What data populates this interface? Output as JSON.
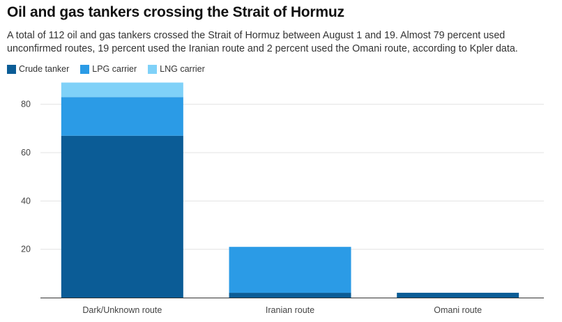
{
  "title": "Oil and gas tankers crossing the Strait of Hormuz",
  "subtitle": "A total of 112 oil and gas tankers crossed the Strait of Hormuz between August 1 and 19. Almost 79 percent used unconfirmed routes, 19 percent used the Iranian route and 2 percent used the Omani route, according to Kpler data.",
  "chart_data": {
    "type": "bar",
    "stacked": true,
    "title": "Oil and gas tankers crossing the Strait of Hormuz",
    "xlabel": "",
    "ylabel": "",
    "categories": [
      "Dark/Unknown route",
      "Iranian route",
      "Omani route"
    ],
    "series": [
      {
        "name": "Crude tanker",
        "color": "#0b5c96",
        "values": [
          67,
          2,
          2
        ]
      },
      {
        "name": "LPG carrier",
        "color": "#2b9be6",
        "values": [
          16,
          19,
          0
        ]
      },
      {
        "name": "LNG carrier",
        "color": "#7fd1f8",
        "values": [
          6,
          0,
          0
        ]
      }
    ],
    "ylim": [
      0,
      90
    ],
    "yticks": [
      20,
      40,
      60,
      80
    ],
    "grid": true,
    "legend_position": "top-left"
  }
}
